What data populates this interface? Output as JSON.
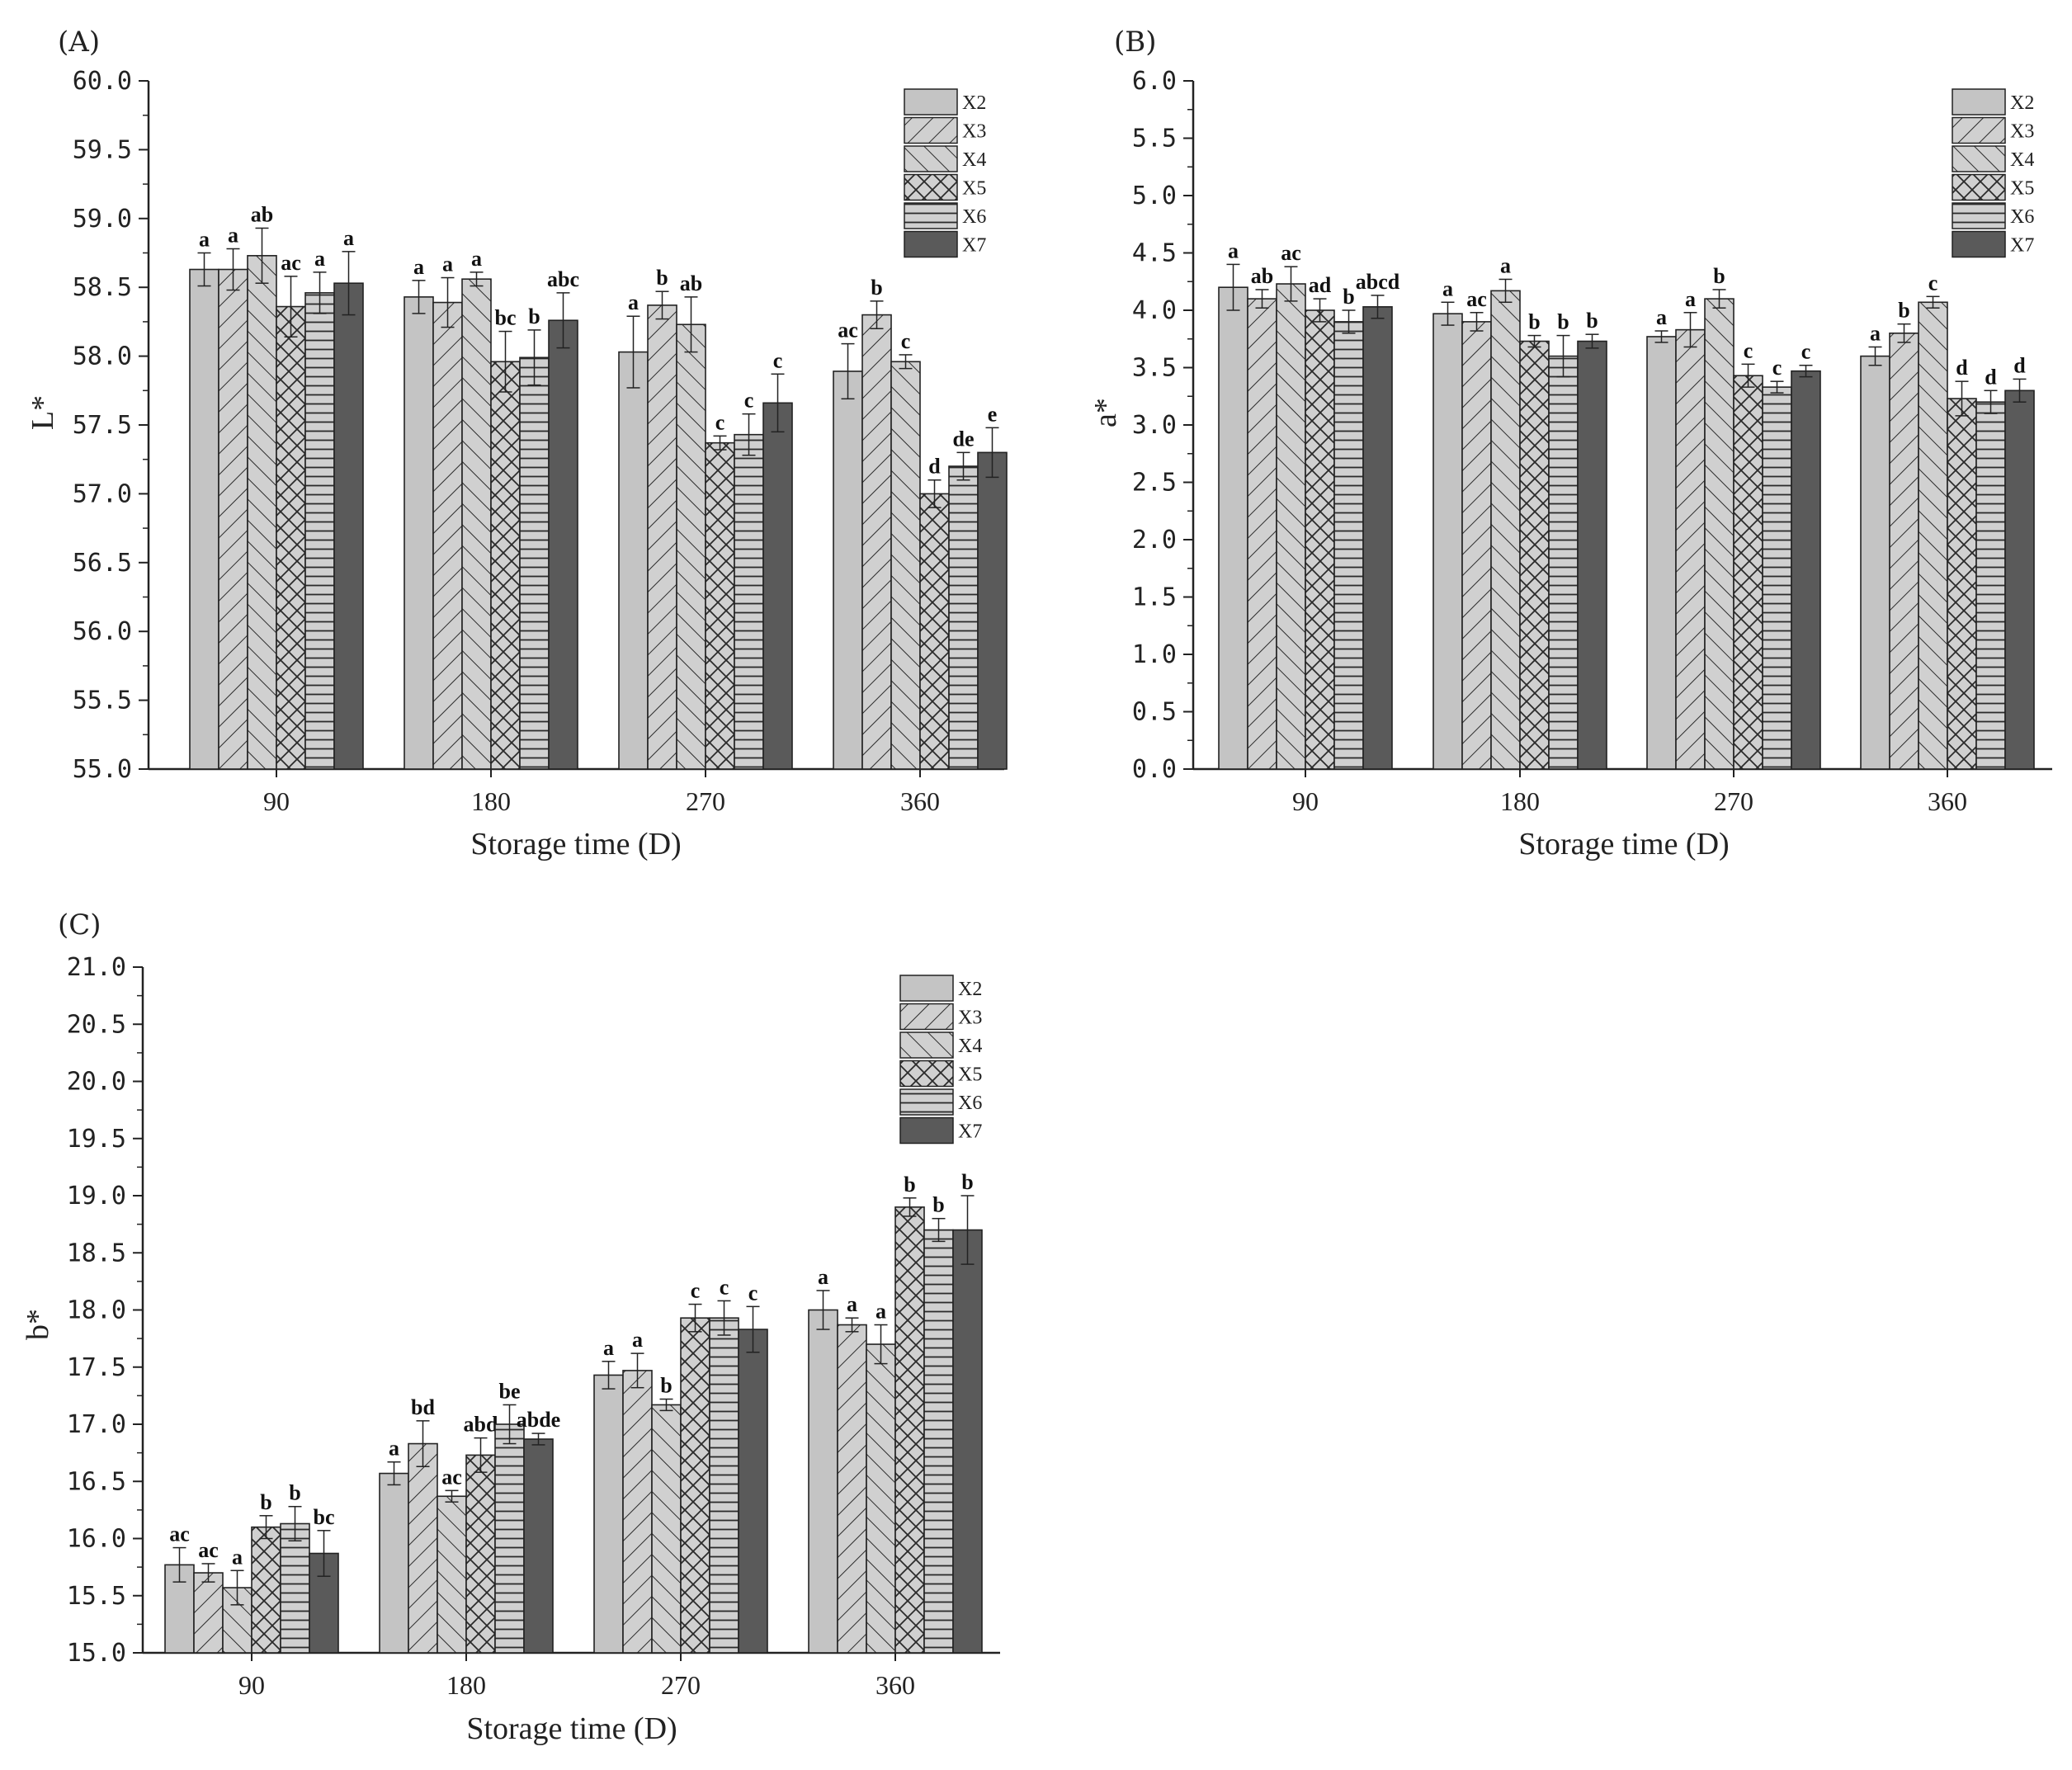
{
  "series_names": [
    "X2",
    "X3",
    "X4",
    "X5",
    "X6",
    "X7"
  ],
  "series_fills": [
    "#c4c4c4",
    "#c9c9c9",
    "#c9c9c9",
    "#c9c9c9",
    "#c9c9c9",
    "#5a5a5a"
  ],
  "chart_data": [
    {
      "type": "bar",
      "panel": "(A)",
      "title": "",
      "xlabel": "Storage time (D)",
      "ylabel": "L*",
      "categories": [
        "90",
        "180",
        "270",
        "360"
      ],
      "ylim": [
        55.0,
        60.0
      ],
      "yticks": [
        "55.0",
        "55.5",
        "56.0",
        "56.5",
        "57.0",
        "57.5",
        "58.0",
        "58.5",
        "59.0",
        "59.5",
        "60.0"
      ],
      "legend_position": "top-right",
      "series": [
        {
          "name": "X2",
          "values": [
            58.63,
            58.43,
            58.03,
            57.89
          ],
          "errors": [
            0.12,
            0.12,
            0.26,
            0.2
          ],
          "labels": [
            "a",
            "a",
            "a",
            "ac"
          ]
        },
        {
          "name": "X3",
          "values": [
            58.63,
            58.39,
            58.37,
            58.3
          ],
          "errors": [
            0.15,
            0.18,
            0.1,
            0.1
          ],
          "labels": [
            "a",
            "a",
            "b",
            "b"
          ]
        },
        {
          "name": "X4",
          "values": [
            58.73,
            58.56,
            58.23,
            57.96
          ],
          "errors": [
            0.2,
            0.05,
            0.2,
            0.05
          ],
          "labels": [
            "ab",
            "a",
            "ab",
            "c"
          ]
        },
        {
          "name": "X5",
          "values": [
            58.36,
            57.96,
            57.37,
            57.0
          ],
          "errors": [
            0.22,
            0.22,
            0.05,
            0.1
          ],
          "labels": [
            "ac",
            "bc",
            "c",
            "d"
          ]
        },
        {
          "name": "X6",
          "values": [
            58.46,
            57.99,
            57.43,
            57.2
          ],
          "errors": [
            0.15,
            0.2,
            0.15,
            0.1
          ],
          "labels": [
            "a",
            "b",
            "c",
            "de"
          ]
        },
        {
          "name": "X7",
          "values": [
            58.53,
            58.26,
            57.66,
            57.3
          ],
          "errors": [
            0.23,
            0.2,
            0.21,
            0.18
          ],
          "labels": [
            "a",
            "abc",
            "c",
            "e"
          ]
        }
      ]
    },
    {
      "type": "bar",
      "panel": "(B)",
      "title": "",
      "xlabel": "Storage time (D)",
      "ylabel": "a*",
      "categories": [
        "90",
        "180",
        "270",
        "360"
      ],
      "ylim": [
        0.0,
        6.0
      ],
      "yticks": [
        "0.0",
        "0.5",
        "1.0",
        "1.5",
        "2.0",
        "2.5",
        "3.0",
        "3.5",
        "4.0",
        "4.5",
        "5.0",
        "5.5",
        "6.0"
      ],
      "legend_position": "top-right",
      "series": [
        {
          "name": "X2",
          "values": [
            4.2,
            3.97,
            3.77,
            3.6
          ],
          "errors": [
            0.2,
            0.1,
            0.05,
            0.08
          ],
          "labels": [
            "a",
            "a",
            "a",
            "a"
          ]
        },
        {
          "name": "X3",
          "values": [
            4.1,
            3.9,
            3.83,
            3.8
          ],
          "errors": [
            0.08,
            0.08,
            0.15,
            0.08
          ],
          "labels": [
            "ab",
            "ac",
            "a",
            "b"
          ]
        },
        {
          "name": "X4",
          "values": [
            4.23,
            4.17,
            4.1,
            4.07
          ],
          "errors": [
            0.15,
            0.1,
            0.08,
            0.05
          ],
          "labels": [
            "ac",
            "a",
            "b",
            "c"
          ]
        },
        {
          "name": "X5",
          "values": [
            4.0,
            3.73,
            3.43,
            3.23
          ],
          "errors": [
            0.1,
            0.05,
            0.1,
            0.15
          ],
          "labels": [
            "ad",
            "b",
            "c",
            "d"
          ]
        },
        {
          "name": "X6",
          "values": [
            3.9,
            3.6,
            3.33,
            3.2
          ],
          "errors": [
            0.1,
            0.18,
            0.05,
            0.1
          ],
          "labels": [
            "b",
            "b",
            "c",
            "d"
          ]
        },
        {
          "name": "X7",
          "values": [
            4.03,
            3.73,
            3.47,
            3.3
          ],
          "errors": [
            0.1,
            0.06,
            0.05,
            0.1
          ],
          "labels": [
            "abcd",
            "b",
            "c",
            "d"
          ]
        }
      ]
    },
    {
      "type": "bar",
      "panel": "(C)",
      "title": "",
      "xlabel": "Storage time (D)",
      "ylabel": "b*",
      "categories": [
        "90",
        "180",
        "270",
        "360"
      ],
      "ylim": [
        15.0,
        21.0
      ],
      "yticks": [
        "15.0",
        "15.5",
        "16.0",
        "16.5",
        "17.0",
        "17.5",
        "18.0",
        "18.5",
        "19.0",
        "19.5",
        "20.0",
        "20.5",
        "21.0"
      ],
      "legend_position": "top-right",
      "series": [
        {
          "name": "X2",
          "values": [
            15.77,
            16.57,
            17.43,
            18.0
          ],
          "errors": [
            0.15,
            0.1,
            0.12,
            0.17
          ],
          "labels": [
            "ac",
            "a",
            "a",
            "a"
          ]
        },
        {
          "name": "X3",
          "values": [
            15.7,
            16.83,
            17.47,
            17.87
          ],
          "errors": [
            0.08,
            0.2,
            0.15,
            0.06
          ],
          "labels": [
            "ac",
            "bd",
            "a",
            "a"
          ]
        },
        {
          "name": "X4",
          "values": [
            15.57,
            16.37,
            17.17,
            17.7
          ],
          "errors": [
            0.15,
            0.05,
            0.05,
            0.17
          ],
          "labels": [
            "a",
            "ac",
            "b",
            "a"
          ]
        },
        {
          "name": "X5",
          "values": [
            16.1,
            16.73,
            17.93,
            18.9
          ],
          "errors": [
            0.1,
            0.15,
            0.12,
            0.08
          ],
          "labels": [
            "b",
            "abd",
            "c",
            "b"
          ]
        },
        {
          "name": "X6",
          "values": [
            16.13,
            17.0,
            17.93,
            18.7
          ],
          "errors": [
            0.15,
            0.17,
            0.15,
            0.1
          ],
          "labels": [
            "b",
            "be",
            "c",
            "b"
          ]
        },
        {
          "name": "X7",
          "values": [
            15.87,
            16.87,
            17.83,
            18.7
          ],
          "errors": [
            0.2,
            0.05,
            0.2,
            0.3
          ],
          "labels": [
            "bc",
            "abde",
            "c",
            "b"
          ]
        }
      ]
    }
  ]
}
